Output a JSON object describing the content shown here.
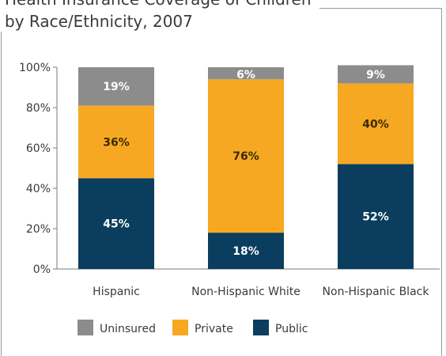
{
  "chart_data": {
    "type": "bar",
    "stacked": true,
    "title": "Health Insurance Coverage of Children",
    "subtitle": "by Race/Ethnicity, 2007",
    "categories": [
      "Hispanic",
      "Non-Hispanic White",
      "Non-Hispanic Black"
    ],
    "series": [
      {
        "name": "Public",
        "values": [
          45,
          18,
          52
        ],
        "labels": [
          "45%",
          "18%",
          "52%"
        ],
        "color": "#0b3d5e",
        "label_color": "#ffffff"
      },
      {
        "name": "Private",
        "values": [
          36,
          76,
          40
        ],
        "labels": [
          "36%",
          "76%",
          "40%"
        ],
        "color": "#f7a823",
        "label_color": "#3a2a00"
      },
      {
        "name": "Uninsured",
        "values": [
          19,
          6,
          9
        ],
        "labels": [
          "19%",
          "6%",
          "9%"
        ],
        "color": "#8c8c8c",
        "label_color": "#ffffff"
      }
    ],
    "legend_order": [
      "Uninsured",
      "Private",
      "Public"
    ],
    "yticks": [
      "0%",
      "20%",
      "40%",
      "60%",
      "80%",
      "100%"
    ],
    "ylim": [
      0,
      100
    ],
    "legend_position": "bottom",
    "grid": false
  }
}
